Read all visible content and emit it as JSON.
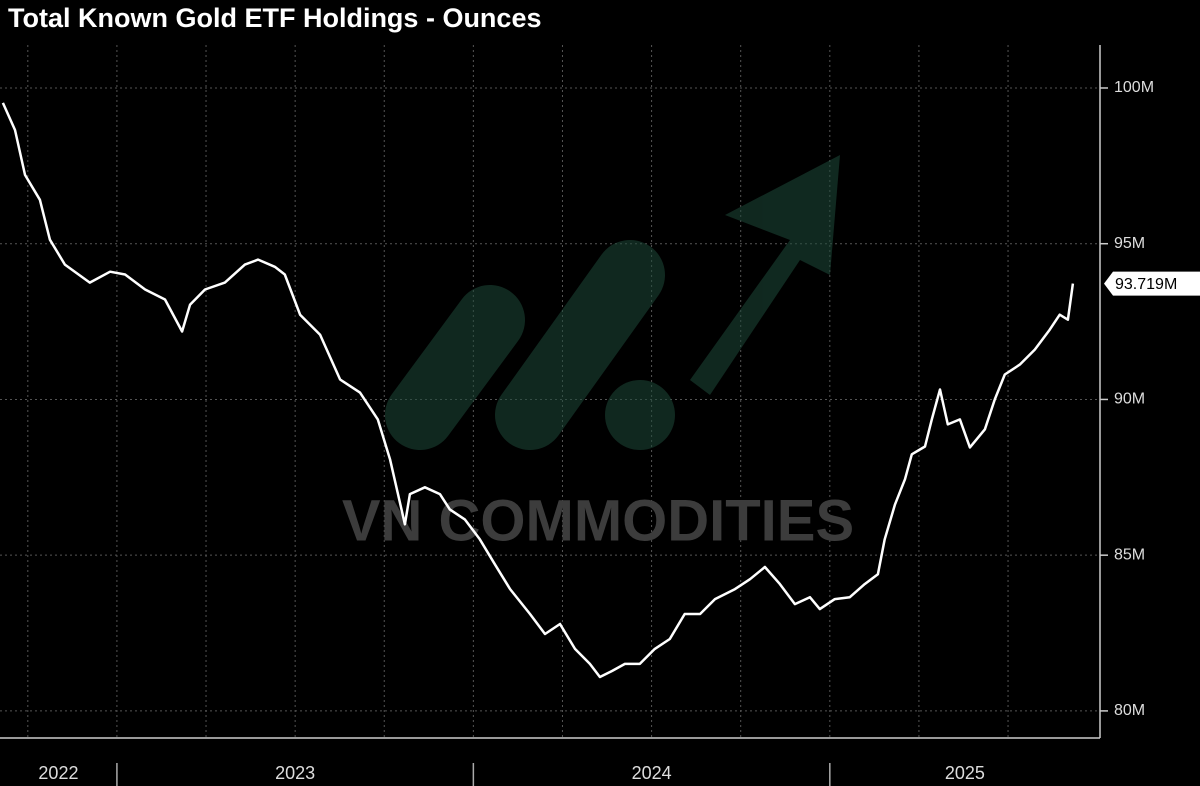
{
  "chart_data": {
    "type": "line",
    "title": "Total Known Gold ETF Holdings - Ounces",
    "watermark": "VN COMMODITIES",
    "series": [
      {
        "color": "#ffffff",
        "x": [
          2022.68,
          2022.714,
          2022.742,
          2022.784,
          2022.812,
          2022.854,
          2022.924,
          2022.981,
          2023.023,
          2023.079,
          2023.135,
          2023.183,
          2023.205,
          2023.247,
          2023.303,
          2023.359,
          2023.396,
          2023.443,
          2023.471,
          2023.514,
          2023.57,
          2023.626,
          2023.682,
          2023.732,
          2023.766,
          2023.808,
          2023.822,
          2023.864,
          2023.906,
          2023.934,
          2023.976,
          2024.018,
          2024.06,
          2024.103,
          2024.159,
          2024.201,
          2024.243,
          2024.285,
          2024.327,
          2024.355,
          2024.389,
          2024.425,
          2024.467,
          2024.509,
          2024.551,
          2024.593,
          2024.636,
          2024.678,
          2024.734,
          2024.776,
          2024.818,
          2024.86,
          2024.902,
          2024.944,
          2024.972,
          2025.014,
          2025.056,
          2025.098,
          2025.135,
          2025.154,
          2025.183,
          2025.211,
          2025.23,
          2025.267,
          2025.286,
          2025.309,
          2025.331,
          2025.365,
          2025.393,
          2025.435,
          2025.463,
          2025.491,
          2025.533,
          2025.575,
          2025.617,
          2025.645,
          2025.668,
          2025.682
        ],
        "values": [
          99.52,
          98.65,
          97.21,
          96.41,
          95.13,
          94.33,
          93.75,
          94.1,
          94.01,
          93.53,
          93.21,
          92.18,
          93.04,
          93.53,
          93.75,
          94.33,
          94.49,
          94.26,
          94.01,
          92.72,
          92.08,
          90.64,
          90.22,
          89.36,
          88.08,
          85.99,
          86.96,
          87.18,
          86.96,
          86.47,
          86.15,
          85.51,
          84.71,
          83.91,
          83.11,
          82.47,
          82.79,
          81.99,
          81.51,
          81.09,
          81.28,
          81.51,
          81.51,
          81.99,
          82.31,
          83.11,
          83.11,
          83.59,
          83.91,
          84.23,
          84.62,
          84.07,
          83.43,
          83.65,
          83.27,
          83.59,
          83.65,
          84.07,
          84.39,
          85.51,
          86.63,
          87.44,
          88.24,
          88.49,
          89.36,
          90.32,
          89.2,
          89.36,
          88.46,
          89.04,
          90.0,
          90.8,
          91.12,
          91.6,
          92.24,
          92.72,
          92.56,
          93.719
        ],
        "value_labels": [
          null,
          null,
          null,
          null,
          null,
          null,
          null,
          null,
          null,
          null,
          null,
          null,
          null,
          null,
          null,
          null,
          null,
          null,
          null,
          null,
          null,
          null,
          null,
          null,
          null,
          null,
          null,
          null,
          null,
          null,
          null,
          null,
          null,
          null,
          null,
          null,
          null,
          null,
          null,
          null,
          null,
          null,
          null,
          null,
          null,
          null,
          null,
          null,
          null,
          null,
          null,
          null,
          null,
          null,
          null,
          null,
          null,
          null,
          null,
          null,
          null,
          null,
          null,
          null,
          null,
          null,
          null,
          null,
          null,
          null,
          null,
          null,
          null,
          null,
          null,
          null,
          null,
          "93.719M"
        ]
      }
    ],
    "xlim": [
      2022.672,
      2025.758
    ],
    "xticks": [
      2022.75,
      2023,
      2023.25,
      2023.5,
      2023.75,
      2024,
      2024.25,
      2024.5,
      2024.75,
      2025,
      2025.25,
      2025.5
    ],
    "year_labels": [
      2022,
      2023,
      2024,
      2025
    ],
    "ylim": [
      79.13,
      101.38
    ],
    "yticks": [
      {
        "value": 80,
        "label": "80M"
      },
      {
        "value": 85,
        "label": "85M"
      },
      {
        "value": 90,
        "label": "90M"
      },
      {
        "value": 95,
        "label": "95M"
      },
      {
        "value": 100,
        "label": "100M"
      }
    ],
    "grid": true
  }
}
